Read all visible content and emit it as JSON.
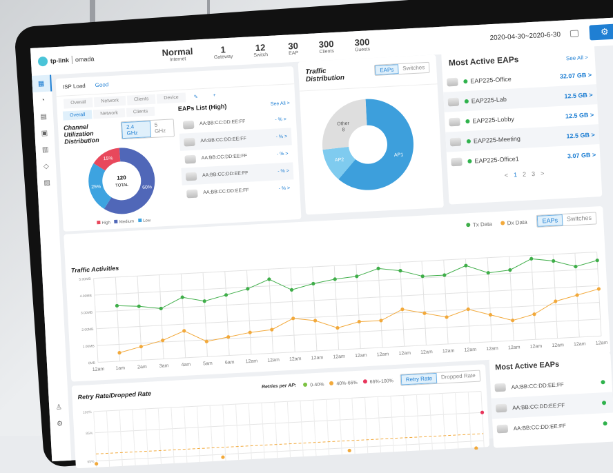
{
  "header": {
    "brand": "tp-link",
    "product": "omada",
    "stats": [
      {
        "value": "Normal",
        "label": "Internet"
      },
      {
        "value": "1",
        "label": "Gateway"
      },
      {
        "value": "12",
        "label": "Switch"
      },
      {
        "value": "30",
        "label": "EAP"
      },
      {
        "value": "300",
        "label": "Clients"
      },
      {
        "value": "300",
        "label": "Guests"
      }
    ],
    "date_range": "2020-04-30~2020-6-30",
    "icons": [
      "calendar-icon",
      "gear-icon"
    ]
  },
  "sidebar": {
    "icons": [
      "dashboard-icon",
      "statistics-icon",
      "map-icon",
      "clients-icon",
      "insight-icon",
      "log-icon",
      "reports-icon",
      "user-icon",
      "settings-icon"
    ]
  },
  "isp": {
    "label": "ISP Load",
    "status": "Good",
    "tabs": [
      "Overall",
      "Network",
      "Clients",
      "Device"
    ]
  },
  "channel": {
    "sub_tabs": [
      "Overall",
      "Network",
      "Clients"
    ],
    "title": "Channel Utilization Distribution",
    "bands": [
      "2.4 GHz",
      "5 GHz"
    ],
    "center_value": "120",
    "center_label": "TOTAL",
    "slices": [
      {
        "name": "High",
        "pct": 15,
        "label": "15%",
        "color": "#e8485c"
      },
      {
        "name": "Medium",
        "pct": 60,
        "label": "60%",
        "color": "#5067b8"
      },
      {
        "name": "Low",
        "pct": 25,
        "label": "25%",
        "color": "#3da3e0"
      }
    ]
  },
  "eaps_high": {
    "title": "EAPs List (High)",
    "see_all": "See All >",
    "items": [
      {
        "mac": "AA:BB:CC:DD:EE:FF",
        "value": "- % >"
      },
      {
        "mac": "AA:BB:CC:DD:EE:FF",
        "value": "- % >"
      },
      {
        "mac": "AA:BB:CC:DD:EE:FF",
        "value": "- % >"
      },
      {
        "mac": "AA:BB:CC:DD:EE:FF",
        "value": "- % >"
      },
      {
        "mac": "AA:BB:CC:DD:EE:FF",
        "value": "- % >"
      }
    ]
  },
  "traffic_dist": {
    "title": "Traffic Distribution",
    "toggle": [
      "EAPs",
      "Switches"
    ],
    "slices": [
      {
        "name": "AP1",
        "pct": 62,
        "color": "#3d9fdc"
      },
      {
        "name": "AP2",
        "pct": 12,
        "color": "#7fcbef"
      },
      {
        "name": "Other",
        "sub": "8",
        "pct": 26,
        "color": "#dedede"
      }
    ]
  },
  "most_active": {
    "title": "Most Active EAPs",
    "see_all": "See All >",
    "items": [
      {
        "name": "EAP225-Office",
        "value": "32.07 GB >"
      },
      {
        "name": "EAP225-Lab",
        "value": "12.5 GB >"
      },
      {
        "name": "EAP225-Lobby",
        "value": "12.5 GB >"
      },
      {
        "name": "EAP225-Meeting",
        "value": "12.5 GB >"
      },
      {
        "name": "EAP225-Office1",
        "value": "3.07 GB >"
      }
    ],
    "pagination": [
      "<",
      "1",
      "2",
      "3",
      ">"
    ],
    "status_color": "#2fb24c"
  },
  "traffic_activities": {
    "title": "Traffic Activities",
    "toggle": [
      "EAPs",
      "Switches"
    ]
  },
  "chart_data": [
    {
      "type": "line",
      "title": "Traffic Activities",
      "ylim": [
        0,
        5
      ],
      "yticks": [
        "0MB",
        "1.00MB",
        "2.00MB",
        "3.00MB",
        "4.00MB",
        "5.00MB"
      ],
      "categories": [
        "12am",
        "1am",
        "2am",
        "3am",
        "4am",
        "5am",
        "6am",
        "12am",
        "12am",
        "12am",
        "12am",
        "12am",
        "12am",
        "12am",
        "12am",
        "12am",
        "12am",
        "12am",
        "12am",
        "12am",
        "12am",
        "12am",
        "12am",
        "12am"
      ],
      "series": [
        {
          "name": "Tx Data",
          "color": "#3fae49",
          "values": [
            null,
            3.3,
            3.2,
            3.0,
            3.6,
            3.3,
            3.6,
            3.9,
            4.4,
            3.7,
            4.0,
            4.2,
            4.3,
            4.7,
            4.5,
            4.1,
            4.1,
            4.6,
            4.1,
            4.2,
            4.8,
            4.6,
            4.2,
            4.5
          ]
        },
        {
          "name": "Dx Data",
          "color": "#f2a93b",
          "values": [
            null,
            0.5,
            0.8,
            1.1,
            1.6,
            0.9,
            1.1,
            1.3,
            1.4,
            2.0,
            1.8,
            1.3,
            1.6,
            1.6,
            2.2,
            1.9,
            1.6,
            2.0,
            1.6,
            1.2,
            1.5,
            2.2,
            2.5,
            2.8
          ]
        }
      ]
    },
    {
      "type": "scatter",
      "title": "Retry Rate/Dropped Rate",
      "legend_label": "Retries per AP:",
      "legend": [
        {
          "name": "0-40%",
          "color": "#7cc243"
        },
        {
          "name": "40%-66%",
          "color": "#f2a93b"
        },
        {
          "name": "66%-100%",
          "color": "#e8365c"
        }
      ],
      "toggle": [
        "Retry Rate",
        "Dropped Rate"
      ],
      "yticks": [
        "65%",
        "85%",
        "100%"
      ],
      "ylim": [
        60,
        100
      ],
      "threshold": 70,
      "points": [
        {
          "x": 0,
          "y": 63,
          "band": "40%-66%"
        },
        {
          "x": 8,
          "y": 63,
          "band": "40%-66%"
        },
        {
          "x": 16,
          "y": 63,
          "band": "40%-66%"
        },
        {
          "x": 24,
          "y": 60,
          "band": "40%-66%"
        },
        {
          "x": 24.5,
          "y": 85,
          "band": "66%-100%"
        }
      ]
    }
  ],
  "bottom_active": {
    "title": "Most Active EAPs",
    "items": [
      "AA:BB:CC:DD:EE:FF",
      "AA:BB:CC:DD:EE:FF",
      "AA:BB:CC:DD:EE:FF"
    ]
  }
}
